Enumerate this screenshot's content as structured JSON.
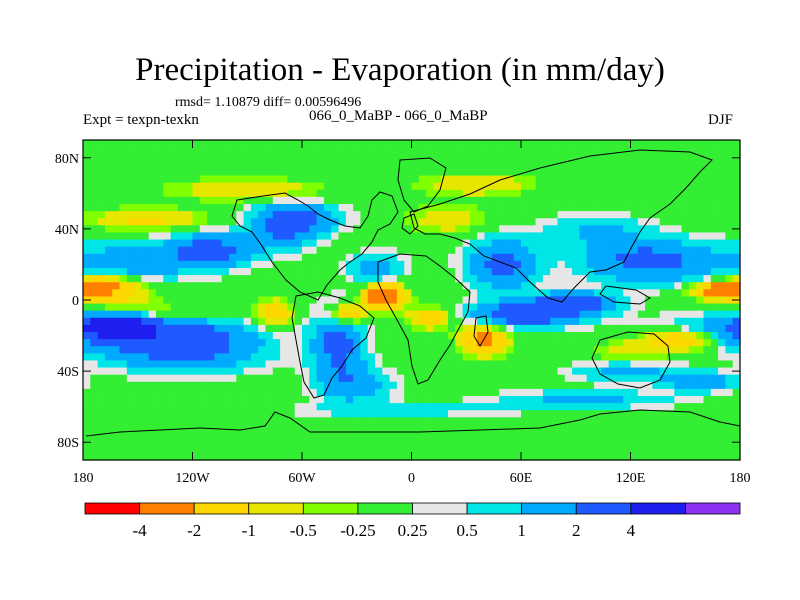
{
  "title": "Precipitation - Evaporation (in mm/day)",
  "stats": "rmsd= 1.10879 diff= 0.00596496",
  "experiment": "Expt = texpn-texkn",
  "runs": "066_0_MaBP - 066_0_MaBP",
  "season": "DJF",
  "x_ticks": [
    {
      "lon": -180,
      "label": "180"
    },
    {
      "lon": -120,
      "label": "120W"
    },
    {
      "lon": -60,
      "label": "60W"
    },
    {
      "lon": 0,
      "label": "0"
    },
    {
      "lon": 60,
      "label": "60E"
    },
    {
      "lon": 120,
      "label": "120E"
    },
    {
      "lon": 180,
      "label": "180"
    }
  ],
  "y_ticks": [
    {
      "lat": 80,
      "label": "80N"
    },
    {
      "lat": 40,
      "label": "40N"
    },
    {
      "lat": 0,
      "label": "0"
    },
    {
      "lat": -40,
      "label": "40S"
    },
    {
      "lat": -80,
      "label": "80S"
    }
  ],
  "colorbar": {
    "colors": [
      "#ff0000",
      "#ff8000",
      "#ffd700",
      "#e6e600",
      "#80ff00",
      "#33ee33",
      "#e6e6e6",
      "#00e6e6",
      "#00aaff",
      "#1e5aff",
      "#1e1eee",
      "#8c32f0"
    ],
    "labels": [
      "-4",
      "-2",
      "-1",
      "-0.5",
      "-0.25",
      "0.25",
      "0.5",
      "1",
      "2",
      "4"
    ]
  },
  "chart_data": {
    "type": "heatmap",
    "title": "Precipitation - Evaporation (in mm/day)",
    "units": "mm/day",
    "lon_range": [
      -180,
      180
    ],
    "lat_range": [
      -90,
      90
    ],
    "levels": [
      -4,
      -2,
      -1,
      -0.5,
      -0.25,
      0.25,
      0.5,
      1,
      2,
      4
    ],
    "blobs": [
      {
        "lon": -160,
        "lat": -18,
        "rx": 55,
        "ry": 9,
        "v": 3
      },
      {
        "lon": -125,
        "lat": -28,
        "rx": 40,
        "ry": 12,
        "v": 2.5
      },
      {
        "lon": -162,
        "lat": -14,
        "rx": 16,
        "ry": 5,
        "v": 5
      },
      {
        "lon": -150,
        "lat": 22,
        "rx": 38,
        "ry": 11,
        "v": 1.5
      },
      {
        "lon": -110,
        "lat": 28,
        "rx": 22,
        "ry": 9,
        "v": 2.5
      },
      {
        "lon": -70,
        "lat": 40,
        "rx": 18,
        "ry": 12,
        "v": 2
      },
      {
        "lon": -60,
        "lat": 46,
        "rx": 22,
        "ry": 8,
        "v": 1.8
      },
      {
        "lon": -20,
        "lat": 18,
        "rx": 14,
        "ry": 8,
        "v": 1.5
      },
      {
        "lon": -40,
        "lat": -25,
        "rx": 14,
        "ry": 20,
        "v": 2.5
      },
      {
        "lon": -30,
        "lat": -48,
        "rx": 20,
        "ry": 10,
        "v": 1.5
      },
      {
        "lon": 50,
        "lat": 20,
        "rx": 18,
        "ry": 14,
        "v": 2.5
      },
      {
        "lon": 62,
        "lat": -8,
        "rx": 28,
        "ry": 7,
        "v": 3.2
      },
      {
        "lon": 90,
        "lat": -2,
        "rx": 22,
        "ry": 6,
        "v": 3
      },
      {
        "lon": 130,
        "lat": 22,
        "rx": 35,
        "ry": 12,
        "v": 2.5
      },
      {
        "lon": 118,
        "lat": -40,
        "rx": 28,
        "ry": 6,
        "v": 1.5
      },
      {
        "lon": 158,
        "lat": -46,
        "rx": 18,
        "ry": 5,
        "v": 2
      },
      {
        "lon": 95,
        "lat": -56,
        "rx": 50,
        "ry": 5,
        "v": 1.2
      },
      {
        "lon": -5,
        "lat": -62,
        "rx": 60,
        "ry": 4,
        "v": 0.7
      },
      {
        "lon": 100,
        "lat": 40,
        "rx": 28,
        "ry": 8,
        "v": 1
      },
      {
        "lon": -170,
        "lat": 8,
        "rx": 20,
        "ry": 5,
        "v": -3
      },
      {
        "lon": -165,
        "lat": 0,
        "rx": 25,
        "ry": 5,
        "v": -1
      },
      {
        "lon": -130,
        "lat": -8,
        "rx": 30,
        "ry": 5,
        "v": -0.8
      },
      {
        "lon": -15,
        "lat": 2,
        "rx": 10,
        "ry": 6,
        "v": -4.5
      },
      {
        "lon": -35,
        "lat": -8,
        "rx": 10,
        "ry": 6,
        "v": -2.5
      },
      {
        "lon": -75,
        "lat": -8,
        "rx": 10,
        "ry": 8,
        "v": -1.5
      },
      {
        "lon": 10,
        "lat": -10,
        "rx": 12,
        "ry": 6,
        "v": -1.5
      },
      {
        "lon": 40,
        "lat": -22,
        "rx": 12,
        "ry": 8,
        "v": -2.5
      },
      {
        "lon": 150,
        "lat": -22,
        "rx": 22,
        "ry": 6,
        "v": -2.5
      },
      {
        "lon": 168,
        "lat": 5,
        "rx": 14,
        "ry": 4,
        "v": -3
      },
      {
        "lon": 120,
        "lat": -30,
        "rx": 22,
        "ry": 8,
        "v": -0.8
      },
      {
        "lon": -145,
        "lat": 45,
        "rx": 30,
        "ry": 6,
        "v": -1.2
      },
      {
        "lon": -90,
        "lat": 62,
        "rx": 40,
        "ry": 6,
        "v": -1
      },
      {
        "lon": 35,
        "lat": 65,
        "rx": 30,
        "ry": 6,
        "v": -1
      },
      {
        "lon": 20,
        "lat": 45,
        "rx": 22,
        "ry": 8,
        "v": -0.8
      },
      {
        "lon": 90,
        "lat": 32,
        "rx": 40,
        "ry": 8,
        "v": 0.1
      },
      {
        "lon": 0,
        "lat": 25,
        "rx": 25,
        "ry": 8,
        "v": 0.1
      },
      {
        "lon": 30,
        "lat": -75,
        "rx": 160,
        "ry": 9,
        "v": 0.1
      },
      {
        "lon": 80,
        "lat": 78,
        "rx": 100,
        "ry": 6,
        "v": 0.1
      },
      {
        "lon": -40,
        "lat": 75,
        "rx": 20,
        "ry": 8,
        "v": 0.1
      },
      {
        "lon": -80,
        "lat": -30,
        "rx": 10,
        "ry": 10,
        "v": 0.1
      }
    ]
  }
}
